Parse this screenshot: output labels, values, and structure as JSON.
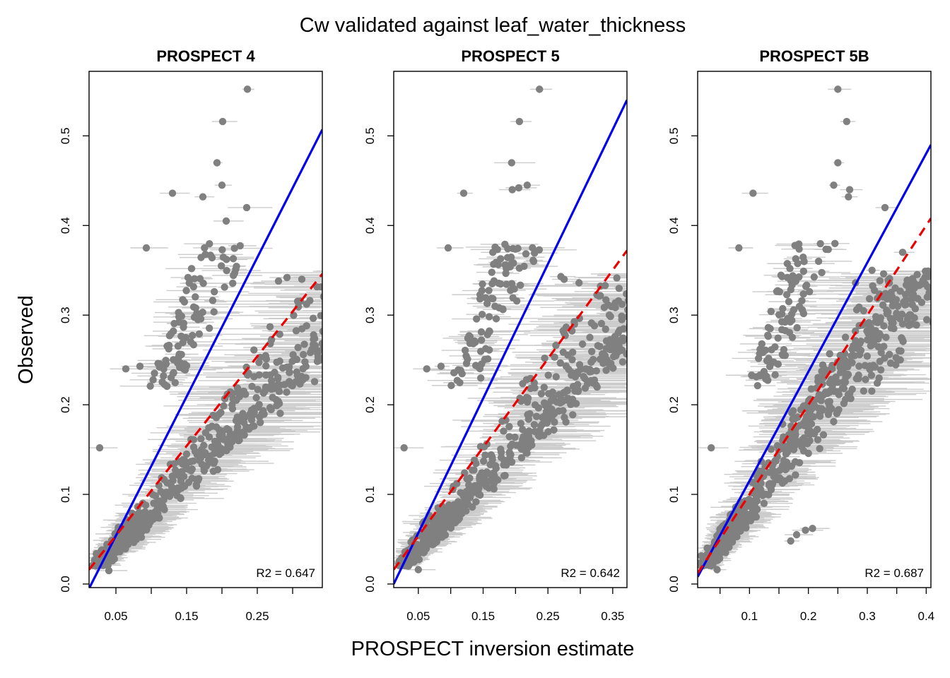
{
  "figure": {
    "title": "Cw validated against leaf_water_thickness",
    "xlabel": "PROSPECT inversion estimate",
    "ylabel": "Observed"
  },
  "colors": {
    "points": "#808080",
    "error_bars": "#cccccc",
    "fit_line": "#0000ee",
    "one_to_one_line": "#ee0000",
    "frame": "#000000"
  },
  "chart_data": [
    {
      "type": "scatter",
      "title": "PROSPECT 4",
      "xlim": [
        0.012,
        0.342
      ],
      "ylim": [
        -0.004,
        0.572
      ],
      "xticks": [
        0.05,
        0.15,
        0.25
      ],
      "xtick_labels": [
        "0.05",
        "0.15",
        "0.25"
      ],
      "yticks": [
        0.0,
        0.1,
        0.2,
        0.3,
        0.4,
        0.5
      ],
      "ytick_labels": [
        "0.0",
        "0.1",
        "0.2",
        "0.3",
        "0.4",
        "0.5"
      ],
      "fit_line": {
        "color": "blue",
        "style": "solid",
        "points": [
          [
            0.012,
            -0.005
          ],
          [
            0.342,
            0.507
          ]
        ]
      },
      "one_to_one_line": {
        "color": "red",
        "style": "dashed",
        "points": [
          [
            0.012,
            0.016
          ],
          [
            0.342,
            0.346
          ]
        ]
      },
      "r2_label": "R2 =  0.647",
      "n_points": 700,
      "cloud": {
        "ratio_min": 0.7,
        "ratio_max": 1.02,
        "ratio_mode": 0.78,
        "obs_skew": 1.15
      },
      "outliers": [
        [
          0.027,
          0.152
        ],
        [
          0.04,
          0.015
        ],
        [
          0.236,
          0.552
        ],
        [
          0.201,
          0.516
        ],
        [
          0.193,
          0.47
        ],
        [
          0.2,
          0.445
        ],
        [
          0.13,
          0.436
        ],
        [
          0.173,
          0.432
        ],
        [
          0.235,
          0.42
        ],
        [
          0.206,
          0.405
        ],
        [
          0.292,
          0.342
        ],
        [
          0.268,
          0.287
        ],
        [
          0.313,
          0.34
        ],
        [
          0.332,
          0.266
        ],
        [
          0.336,
          0.253
        ],
        [
          0.242,
          0.194
        ],
        [
          0.093,
          0.375
        ],
        [
          0.064,
          0.24
        ],
        [
          0.084,
          0.243
        ],
        [
          0.152,
          0.342
        ],
        [
          0.186,
          0.364
        ],
        [
          0.216,
          0.363
        ],
        [
          0.28,
          0.338
        ]
      ]
    },
    {
      "type": "scatter",
      "title": "PROSPECT 5",
      "xlim": [
        0.012,
        0.372
      ],
      "ylim": [
        -0.004,
        0.572
      ],
      "xticks": [
        0.05,
        0.15,
        0.25,
        0.35
      ],
      "xtick_labels": [
        "0.05",
        "0.15",
        "0.25",
        "0.35"
      ],
      "yticks": [
        0.0,
        0.1,
        0.2,
        0.3,
        0.4,
        0.5
      ],
      "ytick_labels": [
        "0.0",
        "0.1",
        "0.2",
        "0.3",
        "0.4",
        "0.5"
      ],
      "fit_line": {
        "color": "blue",
        "style": "solid",
        "points": [
          [
            0.012,
            0.0
          ],
          [
            0.372,
            0.54
          ]
        ]
      },
      "one_to_one_line": {
        "color": "red",
        "style": "dashed",
        "points": [
          [
            0.012,
            0.016
          ],
          [
            0.372,
            0.372
          ]
        ]
      },
      "r2_label": "R2 =  0.642",
      "n_points": 700,
      "cloud": {
        "ratio_min": 0.68,
        "ratio_max": 1.02,
        "ratio_mode": 0.76,
        "obs_skew": 1.15
      },
      "outliers": [
        [
          0.028,
          0.152
        ],
        [
          0.05,
          0.016
        ],
        [
          0.237,
          0.552
        ],
        [
          0.206,
          0.516
        ],
        [
          0.194,
          0.47
        ],
        [
          0.205,
          0.442
        ],
        [
          0.12,
          0.436
        ],
        [
          0.218,
          0.445
        ],
        [
          0.195,
          0.44
        ],
        [
          0.096,
          0.375
        ],
        [
          0.228,
          0.36
        ],
        [
          0.27,
          0.343
        ],
        [
          0.275,
          0.34
        ],
        [
          0.298,
          0.336
        ],
        [
          0.359,
          0.316
        ],
        [
          0.33,
          0.265
        ],
        [
          0.338,
          0.255
        ],
        [
          0.256,
          0.195
        ],
        [
          0.063,
          0.24
        ],
        [
          0.085,
          0.243
        ],
        [
          0.165,
          0.37
        ]
      ]
    },
    {
      "type": "scatter",
      "title": "PROSPECT 5B",
      "xlim": [
        0.012,
        0.408
      ],
      "ylim": [
        -0.004,
        0.572
      ],
      "xticks": [
        0.1,
        0.2,
        0.3,
        0.4
      ],
      "xtick_labels": [
        "0.1",
        "0.2",
        "0.3",
        "0.4"
      ],
      "yticks": [
        0.0,
        0.1,
        0.2,
        0.3,
        0.4,
        0.5
      ],
      "ytick_labels": [
        "0.0",
        "0.1",
        "0.2",
        "0.3",
        "0.4",
        "0.5"
      ],
      "fit_line": {
        "color": "blue",
        "style": "solid",
        "points": [
          [
            0.012,
            0.008
          ],
          [
            0.408,
            0.49
          ]
        ]
      },
      "one_to_one_line": {
        "color": "red",
        "style": "dashed",
        "points": [
          [
            0.012,
            0.012
          ],
          [
            0.408,
            0.408
          ]
        ]
      },
      "r2_label": "R2 =  0.687",
      "n_points": 700,
      "cloud": {
        "ratio_min": 0.72,
        "ratio_max": 1.08,
        "ratio_mode": 0.86,
        "obs_skew": 1.0
      },
      "outliers": [
        [
          0.035,
          0.152
        ],
        [
          0.045,
          0.016
        ],
        [
          0.25,
          0.552
        ],
        [
          0.265,
          0.516
        ],
        [
          0.25,
          0.47
        ],
        [
          0.27,
          0.44
        ],
        [
          0.268,
          0.432
        ],
        [
          0.243,
          0.445
        ],
        [
          0.106,
          0.436
        ],
        [
          0.082,
          0.375
        ],
        [
          0.33,
          0.42
        ],
        [
          0.36,
          0.37
        ],
        [
          0.38,
          0.33
        ],
        [
          0.356,
          0.25
        ],
        [
          0.357,
          0.26
        ],
        [
          0.345,
          0.285
        ],
        [
          0.207,
          0.062
        ],
        [
          0.195,
          0.06
        ],
        [
          0.18,
          0.055
        ],
        [
          0.17,
          0.048
        ],
        [
          0.28,
          0.336
        ],
        [
          0.308,
          0.35
        ]
      ]
    }
  ]
}
